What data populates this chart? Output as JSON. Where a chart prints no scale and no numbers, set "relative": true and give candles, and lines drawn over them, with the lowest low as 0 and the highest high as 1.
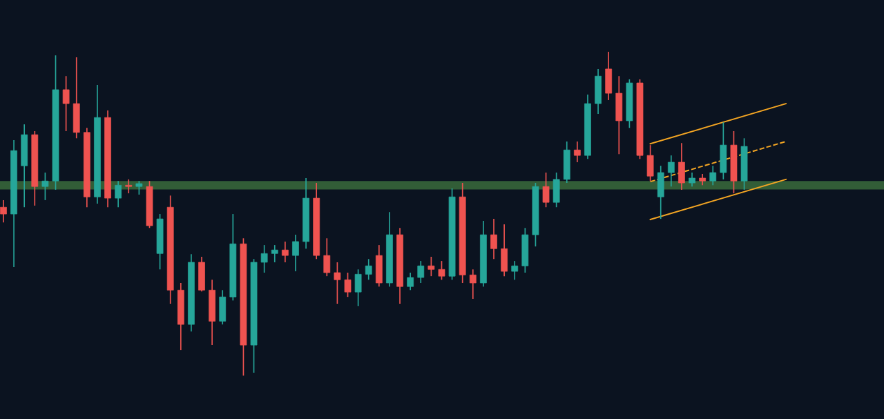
{
  "chart_data": {
    "type": "candlestick",
    "relative": true,
    "categories": [
      null,
      null,
      null,
      null,
      null,
      null,
      null,
      null,
      null,
      null,
      null,
      null,
      null,
      null,
      null,
      null,
      null,
      null,
      null,
      null,
      null,
      null,
      null,
      null,
      null,
      null,
      null,
      null,
      null,
      null,
      null,
      null,
      null,
      null,
      null,
      null,
      null,
      null,
      null,
      null,
      null,
      null,
      null,
      null,
      null,
      null,
      null,
      null,
      null,
      null,
      null,
      null,
      null,
      null,
      null,
      null,
      null,
      null,
      null,
      null,
      null,
      null,
      null,
      null,
      null,
      null,
      null,
      null,
      null,
      null,
      null,
      null,
      null,
      null,
      null,
      null
    ],
    "ohlc": [
      [
        0.52,
        0.542,
        0.473,
        0.499
      ],
      [
        0.499,
        0.727,
        0.335,
        0.695
      ],
      [
        0.648,
        0.776,
        0.52,
        0.744
      ],
      [
        0.744,
        0.755,
        0.525,
        0.584
      ],
      [
        0.584,
        0.627,
        0.542,
        0.601
      ],
      [
        0.601,
        0.989,
        0.574,
        0.883
      ],
      [
        0.883,
        0.925,
        0.755,
        0.84
      ],
      [
        0.84,
        0.983,
        0.733,
        0.751
      ],
      [
        0.751,
        0.765,
        0.52,
        0.552
      ],
      [
        0.552,
        0.898,
        0.531,
        0.797
      ],
      [
        0.797,
        0.819,
        0.52,
        0.548
      ],
      [
        0.548,
        0.601,
        0.52,
        0.588
      ],
      [
        0.588,
        0.606,
        0.563,
        0.584
      ],
      [
        0.584,
        0.601,
        0.559,
        0.593
      ],
      [
        0.584,
        0.601,
        0.456,
        0.463
      ],
      [
        0.377,
        0.499,
        0.328,
        0.484
      ],
      [
        0.52,
        0.556,
        0.222,
        0.264
      ],
      [
        0.264,
        0.286,
        0.079,
        0.158
      ],
      [
        0.158,
        0.375,
        0.136,
        0.35
      ],
      [
        0.35,
        0.367,
        0.26,
        0.264
      ],
      [
        0.264,
        0.296,
        0.094,
        0.168
      ],
      [
        0.168,
        0.264,
        0.158,
        0.243
      ],
      [
        0.243,
        0.499,
        0.232,
        0.407
      ],
      [
        0.407,
        0.424,
        0.0,
        0.094
      ],
      [
        0.094,
        0.36,
        0.009,
        0.35
      ],
      [
        0.35,
        0.403,
        0.318,
        0.377
      ],
      [
        0.377,
        0.403,
        0.35,
        0.388
      ],
      [
        0.388,
        0.414,
        0.35,
        0.371
      ],
      [
        0.371,
        0.435,
        0.322,
        0.414
      ],
      [
        0.414,
        0.61,
        0.392,
        0.548
      ],
      [
        0.548,
        0.595,
        0.36,
        0.371
      ],
      [
        0.371,
        0.424,
        0.307,
        0.318
      ],
      [
        0.318,
        0.35,
        0.222,
        0.296
      ],
      [
        0.296,
        0.318,
        0.243,
        0.258
      ],
      [
        0.258,
        0.328,
        0.215,
        0.313
      ],
      [
        0.313,
        0.36,
        0.296,
        0.339
      ],
      [
        0.371,
        0.403,
        0.275,
        0.286
      ],
      [
        0.286,
        0.505,
        0.275,
        0.435
      ],
      [
        0.435,
        0.456,
        0.222,
        0.275
      ],
      [
        0.275,
        0.318,
        0.264,
        0.303
      ],
      [
        0.303,
        0.354,
        0.286,
        0.339
      ],
      [
        0.339,
        0.367,
        0.307,
        0.328
      ],
      [
        0.328,
        0.354,
        0.296,
        0.307
      ],
      [
        0.307,
        0.578,
        0.296,
        0.552
      ],
      [
        0.552,
        0.595,
        0.286,
        0.311
      ],
      [
        0.311,
        0.328,
        0.237,
        0.286
      ],
      [
        0.286,
        0.478,
        0.275,
        0.435
      ],
      [
        0.435,
        0.484,
        0.36,
        0.392
      ],
      [
        0.392,
        0.467,
        0.307,
        0.322
      ],
      [
        0.322,
        0.354,
        0.296,
        0.339
      ],
      [
        0.339,
        0.456,
        0.318,
        0.435
      ],
      [
        0.435,
        0.595,
        0.399,
        0.584
      ],
      [
        0.584,
        0.627,
        0.52,
        0.535
      ],
      [
        0.535,
        0.627,
        0.52,
        0.606
      ],
      [
        0.606,
        0.723,
        0.595,
        0.697
      ],
      [
        0.697,
        0.723,
        0.659,
        0.68
      ],
      [
        0.68,
        0.868,
        0.669,
        0.84
      ],
      [
        0.84,
        0.947,
        0.808,
        0.925
      ],
      [
        0.947,
        1.0,
        0.851,
        0.872
      ],
      [
        0.872,
        0.925,
        0.684,
        0.787
      ],
      [
        0.787,
        0.915,
        0.765,
        0.904
      ],
      [
        0.904,
        0.915,
        0.669,
        0.68
      ],
      [
        0.68,
        0.712,
        0.601,
        0.616
      ],
      [
        0.552,
        0.648,
        0.484,
        0.627
      ],
      [
        0.627,
        0.68,
        0.584,
        0.659
      ],
      [
        0.659,
        0.718,
        0.574,
        0.595
      ],
      [
        0.595,
        0.627,
        0.584,
        0.61
      ],
      [
        0.61,
        0.623,
        0.588,
        0.601
      ],
      [
        0.601,
        0.648,
        0.588,
        0.627
      ],
      [
        0.627,
        0.782,
        0.606,
        0.712
      ],
      [
        0.712,
        0.755,
        0.563,
        0.601
      ],
      [
        0.601,
        0.733,
        0.574,
        0.708
      ],
      null,
      null,
      null,
      null
    ],
    "colors": [
      "#ef5350",
      "#26a69a",
      "#26a69a",
      "#ef5350",
      "#26a69a",
      "#26a69a",
      "#ef5350",
      "#ef5350",
      "#ef5350",
      "#26a69a",
      "#ef5350",
      "#26a69a",
      "#ef5350",
      "#26a69a",
      "#ef5350",
      "#26a69a",
      "#ef5350",
      "#ef5350",
      "#26a69a",
      "#ef5350",
      "#ef5350",
      "#26a69a",
      "#26a69a",
      "#ef5350",
      "#26a69a",
      "#26a69a",
      "#26a69a",
      "#ef5350",
      "#26a69a",
      "#26a69a",
      "#ef5350",
      "#ef5350",
      "#ef5350",
      "#ef5350",
      "#26a69a",
      "#26a69a",
      "#ef5350",
      "#26a69a",
      "#ef5350",
      "#26a69a",
      "#26a69a",
      "#ef5350",
      "#ef5350",
      "#26a69a",
      "#ef5350",
      "#ef5350",
      "#26a69a",
      "#ef5350",
      "#ef5350",
      "#26a69a",
      "#26a69a",
      "#26a69a",
      "#ef5350",
      "#26a69a",
      "#26a69a",
      "#ef5350",
      "#26a69a",
      "#26a69a",
      "#ef5350",
      "#ef5350",
      "#26a69a",
      "#ef5350",
      "#ef5350",
      "#26a69a",
      "#26a69a",
      "#ef5350",
      "#26a69a",
      "#ef5350",
      "#26a69a",
      "#26a69a",
      "#ef5350",
      "#26a69a",
      null,
      null,
      null,
      null
    ],
    "series": [
      {
        "type": "line",
        "color": "#f5a623",
        "line_style": "solid",
        "values": [
          null,
          null,
          null,
          null,
          null,
          null,
          null,
          null,
          null,
          null,
          null,
          null,
          null,
          null,
          null,
          null,
          null,
          null,
          null,
          null,
          null,
          null,
          null,
          null,
          null,
          null,
          null,
          null,
          null,
          null,
          null,
          null,
          null,
          null,
          null,
          null,
          null,
          null,
          null,
          null,
          null,
          null,
          null,
          null,
          null,
          null,
          null,
          null,
          null,
          null,
          null,
          null,
          null,
          null,
          null,
          null,
          null,
          null,
          null,
          null,
          null,
          null,
          0.716,
          null,
          null,
          null,
          null,
          null,
          null,
          null,
          null,
          null,
          null,
          null,
          null,
          0.84
        ]
      },
      {
        "type": "line",
        "color": "#f5a623",
        "line_style": "dashed",
        "values": [
          null,
          null,
          null,
          null,
          null,
          null,
          null,
          null,
          null,
          null,
          null,
          null,
          null,
          null,
          null,
          null,
          null,
          null,
          null,
          null,
          null,
          null,
          null,
          null,
          null,
          null,
          null,
          null,
          null,
          null,
          null,
          null,
          null,
          null,
          null,
          null,
          null,
          null,
          null,
          null,
          null,
          null,
          null,
          null,
          null,
          null,
          null,
          null,
          null,
          null,
          null,
          null,
          null,
          null,
          null,
          null,
          null,
          null,
          null,
          null,
          null,
          null,
          0.599,
          null,
          null,
          null,
          null,
          null,
          null,
          null,
          null,
          null,
          null,
          null,
          null,
          0.723
        ]
      },
      {
        "type": "line",
        "color": "#f5a623",
        "line_style": "solid",
        "values": [
          null,
          null,
          null,
          null,
          null,
          null,
          null,
          null,
          null,
          null,
          null,
          null,
          null,
          null,
          null,
          null,
          null,
          null,
          null,
          null,
          null,
          null,
          null,
          null,
          null,
          null,
          null,
          null,
          null,
          null,
          null,
          null,
          null,
          null,
          null,
          null,
          null,
          null,
          null,
          null,
          null,
          null,
          null,
          null,
          null,
          null,
          null,
          null,
          null,
          null,
          null,
          null,
          null,
          null,
          null,
          null,
          null,
          null,
          null,
          null,
          null,
          null,
          0.482,
          null,
          null,
          null,
          null,
          null,
          null,
          null,
          null,
          null,
          null,
          null,
          null,
          0.606
        ]
      }
    ],
    "bands": [
      {
        "axis": "y",
        "from": 0.575,
        "to": 0.601,
        "color": "#3a6b3c"
      }
    ],
    "tick_labels": false
  }
}
